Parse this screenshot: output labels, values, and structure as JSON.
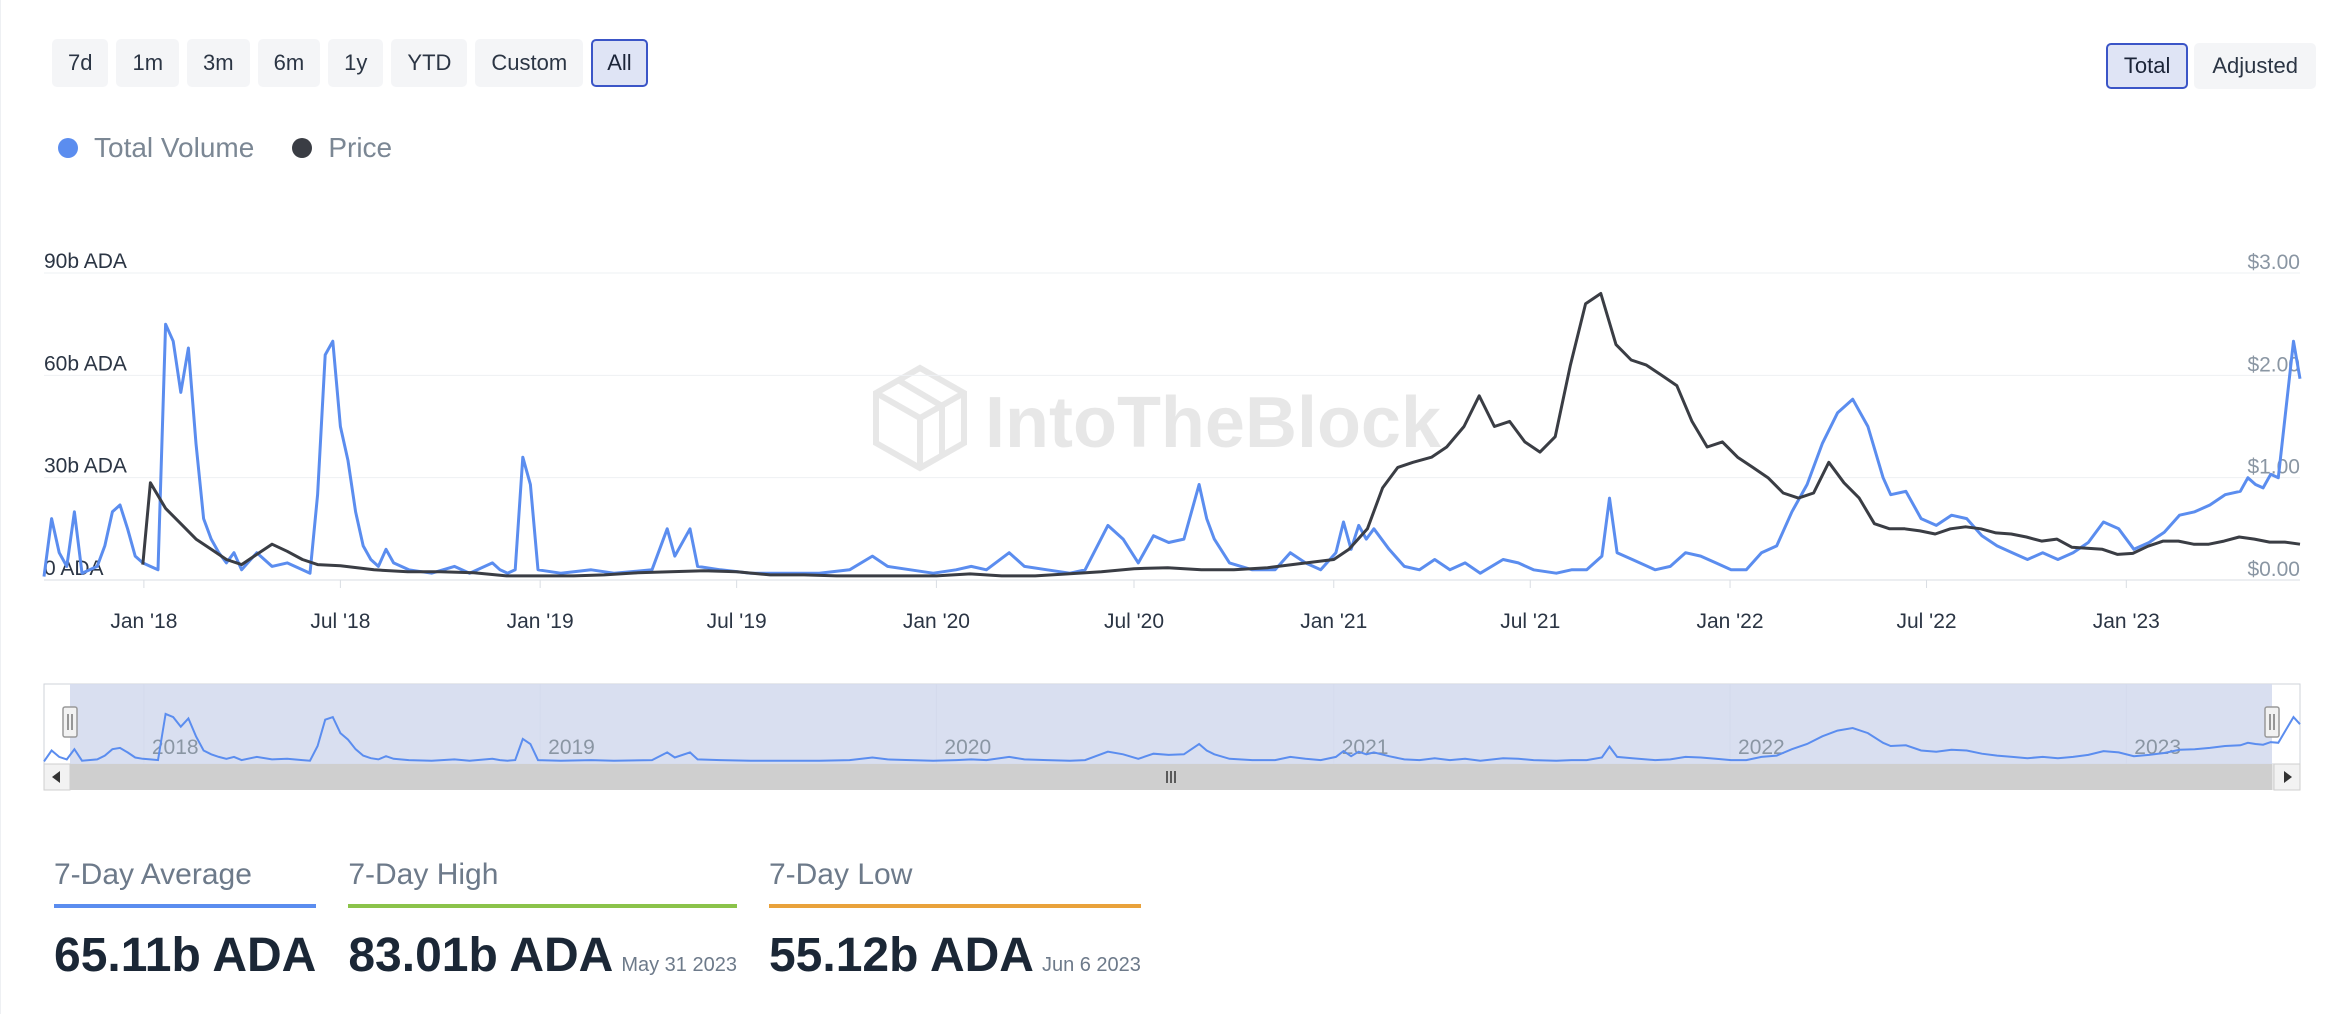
{
  "range_buttons": [
    "7d",
    "1m",
    "3m",
    "6m",
    "1y",
    "YTD",
    "Custom",
    "All"
  ],
  "range_active": "All",
  "mode_buttons": [
    "Total",
    "Adjusted"
  ],
  "mode_active": "Total",
  "legend": [
    {
      "label": "Total Volume",
      "color": "#5b8def"
    },
    {
      "label": "Price",
      "color": "#3a3d44"
    }
  ],
  "watermark": "IntoTheBlock",
  "colors": {
    "volume": "#5b8def",
    "price": "#3a3d44",
    "navigator_fill": "#d5dbee",
    "average": "#5b8def",
    "high": "#8bc34a",
    "low": "#e9a23b"
  },
  "chart_data": {
    "type": "line",
    "x_ticks": [
      "Jan '18",
      "Jul '18",
      "Jan '19",
      "Jul '19",
      "Jan '20",
      "Jul '20",
      "Jan '21",
      "Jul '21",
      "Jan '22",
      "Jul '22",
      "Jan '23"
    ],
    "y_left_ticks": [
      "0 ADA",
      "30b ADA",
      "60b ADA",
      "90b ADA"
    ],
    "y_left_range": [
      0,
      90
    ],
    "y_left_unit": "b ADA",
    "y_right_ticks": [
      "$0.00",
      "$1.00",
      "$2.00",
      "$3.00"
    ],
    "y_right_range": [
      0,
      3
    ],
    "x_range": [
      "2017-10-01",
      "2023-06-10"
    ],
    "series": [
      {
        "name": "Total Volume",
        "axis": "left",
        "points": [
          [
            "2017-10-01",
            1
          ],
          [
            "2017-10-08",
            18
          ],
          [
            "2017-10-15",
            8
          ],
          [
            "2017-10-22",
            4
          ],
          [
            "2017-10-29",
            20
          ],
          [
            "2017-11-05",
            2
          ],
          [
            "2017-11-19",
            4
          ],
          [
            "2017-11-26",
            10
          ],
          [
            "2017-12-03",
            20
          ],
          [
            "2017-12-10",
            22
          ],
          [
            "2017-12-17",
            15
          ],
          [
            "2017-12-24",
            7
          ],
          [
            "2017-12-31",
            5
          ],
          [
            "2018-01-07",
            4
          ],
          [
            "2018-01-14",
            3
          ],
          [
            "2018-01-21",
            75
          ],
          [
            "2018-01-28",
            70
          ],
          [
            "2018-02-04",
            55
          ],
          [
            "2018-02-11",
            68
          ],
          [
            "2018-02-18",
            40
          ],
          [
            "2018-02-25",
            18
          ],
          [
            "2018-03-04",
            12
          ],
          [
            "2018-03-11",
            8
          ],
          [
            "2018-03-18",
            5
          ],
          [
            "2018-03-25",
            8
          ],
          [
            "2018-04-01",
            3
          ],
          [
            "2018-04-15",
            8
          ],
          [
            "2018-04-29",
            4
          ],
          [
            "2018-05-13",
            5
          ],
          [
            "2018-05-27",
            3
          ],
          [
            "2018-06-03",
            2
          ],
          [
            "2018-06-10",
            25
          ],
          [
            "2018-06-17",
            66
          ],
          [
            "2018-06-24",
            70
          ],
          [
            "2018-07-01",
            45
          ],
          [
            "2018-07-08",
            35
          ],
          [
            "2018-07-15",
            20
          ],
          [
            "2018-07-22",
            10
          ],
          [
            "2018-07-29",
            6
          ],
          [
            "2018-08-05",
            4
          ],
          [
            "2018-08-12",
            9
          ],
          [
            "2018-08-19",
            5
          ],
          [
            "2018-09-02",
            3
          ],
          [
            "2018-09-23",
            2
          ],
          [
            "2018-10-14",
            4
          ],
          [
            "2018-10-28",
            2
          ],
          [
            "2018-11-18",
            5
          ],
          [
            "2018-11-25",
            3
          ],
          [
            "2018-12-02",
            2
          ],
          [
            "2018-12-09",
            3
          ],
          [
            "2018-12-16",
            36
          ],
          [
            "2018-12-23",
            28
          ],
          [
            "2018-12-30",
            3
          ],
          [
            "2019-01-20",
            2
          ],
          [
            "2019-02-17",
            3
          ],
          [
            "2019-03-10",
            2
          ],
          [
            "2019-04-14",
            3
          ],
          [
            "2019-04-28",
            15
          ],
          [
            "2019-05-05",
            7
          ],
          [
            "2019-05-19",
            15
          ],
          [
            "2019-05-26",
            4
          ],
          [
            "2019-06-16",
            3
          ],
          [
            "2019-07-14",
            2
          ],
          [
            "2019-08-18",
            2
          ],
          [
            "2019-09-15",
            2
          ],
          [
            "2019-10-13",
            3
          ],
          [
            "2019-11-03",
            7
          ],
          [
            "2019-11-17",
            4
          ],
          [
            "2019-12-08",
            3
          ],
          [
            "2019-12-29",
            2
          ],
          [
            "2020-01-19",
            3
          ],
          [
            "2020-02-02",
            4
          ],
          [
            "2020-02-16",
            3
          ],
          [
            "2020-03-08",
            8
          ],
          [
            "2020-03-22",
            4
          ],
          [
            "2020-04-12",
            3
          ],
          [
            "2020-05-03",
            2
          ],
          [
            "2020-05-17",
            3
          ],
          [
            "2020-06-07",
            16
          ],
          [
            "2020-06-21",
            12
          ],
          [
            "2020-07-05",
            5
          ],
          [
            "2020-07-19",
            13
          ],
          [
            "2020-08-02",
            11
          ],
          [
            "2020-08-16",
            12
          ],
          [
            "2020-08-30",
            28
          ],
          [
            "2020-09-06",
            18
          ],
          [
            "2020-09-13",
            12
          ],
          [
            "2020-09-27",
            5
          ],
          [
            "2020-10-18",
            3
          ],
          [
            "2020-11-08",
            3
          ],
          [
            "2020-11-22",
            8
          ],
          [
            "2020-12-06",
            5
          ],
          [
            "2020-12-20",
            3
          ],
          [
            "2021-01-03",
            8
          ],
          [
            "2021-01-10",
            17
          ],
          [
            "2021-01-17",
            9
          ],
          [
            "2021-01-24",
            16
          ],
          [
            "2021-01-31",
            12
          ],
          [
            "2021-02-07",
            15
          ],
          [
            "2021-02-21",
            9
          ],
          [
            "2021-03-07",
            4
          ],
          [
            "2021-03-21",
            3
          ],
          [
            "2021-04-04",
            6
          ],
          [
            "2021-04-18",
            3
          ],
          [
            "2021-05-02",
            5
          ],
          [
            "2021-05-16",
            2
          ],
          [
            "2021-06-06",
            6
          ],
          [
            "2021-06-20",
            5
          ],
          [
            "2021-07-04",
            3
          ],
          [
            "2021-07-25",
            2
          ],
          [
            "2021-08-08",
            3
          ],
          [
            "2021-08-22",
            3
          ],
          [
            "2021-09-05",
            7
          ],
          [
            "2021-09-12",
            24
          ],
          [
            "2021-09-19",
            8
          ],
          [
            "2021-10-03",
            6
          ],
          [
            "2021-10-24",
            3
          ],
          [
            "2021-11-07",
            4
          ],
          [
            "2021-11-21",
            8
          ],
          [
            "2021-12-05",
            7
          ],
          [
            "2021-12-19",
            5
          ],
          [
            "2022-01-02",
            3
          ],
          [
            "2022-01-16",
            3
          ],
          [
            "2022-01-30",
            8
          ],
          [
            "2022-02-13",
            10
          ],
          [
            "2022-02-27",
            20
          ],
          [
            "2022-03-13",
            28
          ],
          [
            "2022-03-27",
            40
          ],
          [
            "2022-04-10",
            49
          ],
          [
            "2022-04-24",
            53
          ],
          [
            "2022-05-08",
            45
          ],
          [
            "2022-05-22",
            30
          ],
          [
            "2022-05-29",
            25
          ],
          [
            "2022-06-12",
            26
          ],
          [
            "2022-06-26",
            18
          ],
          [
            "2022-07-10",
            16
          ],
          [
            "2022-07-24",
            19
          ],
          [
            "2022-08-07",
            18
          ],
          [
            "2022-08-21",
            13
          ],
          [
            "2022-09-04",
            10
          ],
          [
            "2022-09-18",
            8
          ],
          [
            "2022-10-02",
            6
          ],
          [
            "2022-10-16",
            8
          ],
          [
            "2022-10-30",
            6
          ],
          [
            "2022-11-13",
            8
          ],
          [
            "2022-11-27",
            11
          ],
          [
            "2022-12-11",
            17
          ],
          [
            "2022-12-25",
            15
          ],
          [
            "2023-01-08",
            9
          ],
          [
            "2023-01-22",
            11
          ],
          [
            "2023-02-05",
            14
          ],
          [
            "2023-02-19",
            19
          ],
          [
            "2023-03-05",
            20
          ],
          [
            "2023-03-19",
            22
          ],
          [
            "2023-04-02",
            25
          ],
          [
            "2023-04-16",
            26
          ],
          [
            "2023-04-23",
            30
          ],
          [
            "2023-04-30",
            28
          ],
          [
            "2023-05-07",
            27
          ],
          [
            "2023-05-14",
            31
          ],
          [
            "2023-05-21",
            30
          ],
          [
            "2023-05-28",
            50
          ],
          [
            "2023-06-04",
            70
          ],
          [
            "2023-06-10",
            59
          ]
        ]
      },
      {
        "name": "Price",
        "axis": "right",
        "points": [
          [
            "2017-12-31",
            0.15
          ],
          [
            "2018-01-07",
            0.95
          ],
          [
            "2018-01-21",
            0.7
          ],
          [
            "2018-02-04",
            0.55
          ],
          [
            "2018-02-18",
            0.4
          ],
          [
            "2018-03-04",
            0.3
          ],
          [
            "2018-03-18",
            0.2
          ],
          [
            "2018-04-01",
            0.15
          ],
          [
            "2018-04-15",
            0.25
          ],
          [
            "2018-04-29",
            0.35
          ],
          [
            "2018-05-13",
            0.28
          ],
          [
            "2018-05-27",
            0.2
          ],
          [
            "2018-06-10",
            0.15
          ],
          [
            "2018-07-01",
            0.14
          ],
          [
            "2018-08-01",
            0.1
          ],
          [
            "2018-09-01",
            0.08
          ],
          [
            "2018-10-01",
            0.08
          ],
          [
            "2018-11-01",
            0.07
          ],
          [
            "2018-12-01",
            0.04
          ],
          [
            "2019-01-01",
            0.04
          ],
          [
            "2019-02-01",
            0.04
          ],
          [
            "2019-03-01",
            0.05
          ],
          [
            "2019-04-01",
            0.07
          ],
          [
            "2019-05-01",
            0.08
          ],
          [
            "2019-06-01",
            0.09
          ],
          [
            "2019-07-01",
            0.08
          ],
          [
            "2019-08-01",
            0.05
          ],
          [
            "2019-09-01",
            0.05
          ],
          [
            "2019-10-01",
            0.04
          ],
          [
            "2019-11-01",
            0.04
          ],
          [
            "2019-12-01",
            0.04
          ],
          [
            "2020-01-01",
            0.04
          ],
          [
            "2020-02-01",
            0.06
          ],
          [
            "2020-03-01",
            0.04
          ],
          [
            "2020-04-01",
            0.04
          ],
          [
            "2020-05-01",
            0.06
          ],
          [
            "2020-06-01",
            0.08
          ],
          [
            "2020-07-01",
            0.11
          ],
          [
            "2020-08-01",
            0.12
          ],
          [
            "2020-09-01",
            0.1
          ],
          [
            "2020-10-01",
            0.1
          ],
          [
            "2020-11-01",
            0.12
          ],
          [
            "2020-12-01",
            0.16
          ],
          [
            "2021-01-01",
            0.2
          ],
          [
            "2021-01-15",
            0.3
          ],
          [
            "2021-02-01",
            0.5
          ],
          [
            "2021-02-15",
            0.9
          ],
          [
            "2021-03-01",
            1.1
          ],
          [
            "2021-03-15",
            1.15
          ],
          [
            "2021-04-01",
            1.2
          ],
          [
            "2021-04-15",
            1.3
          ],
          [
            "2021-05-01",
            1.5
          ],
          [
            "2021-05-15",
            1.8
          ],
          [
            "2021-05-29",
            1.5
          ],
          [
            "2021-06-12",
            1.55
          ],
          [
            "2021-06-26",
            1.35
          ],
          [
            "2021-07-10",
            1.25
          ],
          [
            "2021-07-24",
            1.4
          ],
          [
            "2021-08-07",
            2.1
          ],
          [
            "2021-08-21",
            2.7
          ],
          [
            "2021-09-04",
            2.8
          ],
          [
            "2021-09-18",
            2.3
          ],
          [
            "2021-10-02",
            2.15
          ],
          [
            "2021-10-16",
            2.1
          ],
          [
            "2021-10-30",
            2.0
          ],
          [
            "2021-11-13",
            1.9
          ],
          [
            "2021-11-27",
            1.55
          ],
          [
            "2021-12-11",
            1.3
          ],
          [
            "2021-12-25",
            1.35
          ],
          [
            "2022-01-08",
            1.2
          ],
          [
            "2022-01-22",
            1.1
          ],
          [
            "2022-02-05",
            1.0
          ],
          [
            "2022-02-19",
            0.85
          ],
          [
            "2022-03-05",
            0.8
          ],
          [
            "2022-03-19",
            0.85
          ],
          [
            "2022-04-02",
            1.15
          ],
          [
            "2022-04-16",
            0.95
          ],
          [
            "2022-04-30",
            0.8
          ],
          [
            "2022-05-14",
            0.55
          ],
          [
            "2022-05-28",
            0.5
          ],
          [
            "2022-06-11",
            0.5
          ],
          [
            "2022-06-25",
            0.48
          ],
          [
            "2022-07-09",
            0.45
          ],
          [
            "2022-07-23",
            0.5
          ],
          [
            "2022-08-06",
            0.52
          ],
          [
            "2022-08-20",
            0.5
          ],
          [
            "2022-09-03",
            0.46
          ],
          [
            "2022-09-17",
            0.45
          ],
          [
            "2022-10-01",
            0.42
          ],
          [
            "2022-10-15",
            0.38
          ],
          [
            "2022-10-29",
            0.4
          ],
          [
            "2022-11-12",
            0.32
          ],
          [
            "2022-11-26",
            0.31
          ],
          [
            "2022-12-10",
            0.3
          ],
          [
            "2022-12-24",
            0.25
          ],
          [
            "2023-01-07",
            0.26
          ],
          [
            "2023-01-21",
            0.33
          ],
          [
            "2023-02-04",
            0.38
          ],
          [
            "2023-02-18",
            0.38
          ],
          [
            "2023-03-04",
            0.35
          ],
          [
            "2023-03-18",
            0.35
          ],
          [
            "2023-04-01",
            0.38
          ],
          [
            "2023-04-15",
            0.42
          ],
          [
            "2023-04-29",
            0.4
          ],
          [
            "2023-05-13",
            0.37
          ],
          [
            "2023-05-27",
            0.37
          ],
          [
            "2023-06-10",
            0.35
          ]
        ]
      }
    ],
    "navigator_labels": [
      "2018",
      "2019",
      "2020",
      "2021",
      "2022",
      "2023"
    ]
  },
  "stats": [
    {
      "label": "7-Day Average",
      "value": "65.11b ADA",
      "date": ""
    },
    {
      "label": "7-Day High",
      "value": "83.01b ADA",
      "date": "May 31 2023"
    },
    {
      "label": "7-Day Low",
      "value": "55.12b ADA",
      "date": "Jun 6 2023"
    }
  ]
}
